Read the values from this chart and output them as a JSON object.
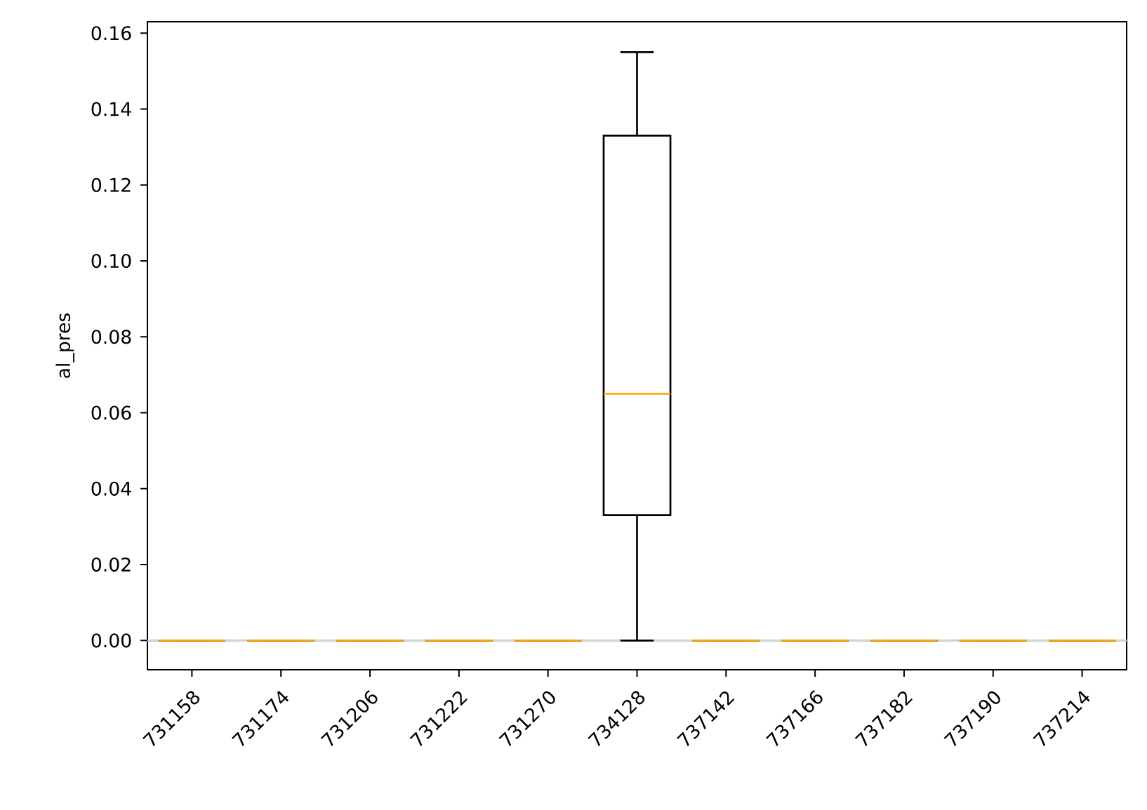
{
  "chart_data": {
    "type": "box",
    "ylabel": "al_pres",
    "categories": [
      "731158",
      "731174",
      "731206",
      "731222",
      "731270",
      "734128",
      "737142",
      "737166",
      "737182",
      "737190",
      "737214"
    ],
    "boxes": [
      {
        "low": 0,
        "q1": 0,
        "median": 0,
        "q3": 0,
        "high": 0
      },
      {
        "low": 0,
        "q1": 0,
        "median": 0,
        "q3": 0,
        "high": 0
      },
      {
        "low": 0,
        "q1": 0,
        "median": 0,
        "q3": 0,
        "high": 0
      },
      {
        "low": 0,
        "q1": 0,
        "median": 0,
        "q3": 0,
        "high": 0
      },
      {
        "low": 0,
        "q1": 0,
        "median": 0,
        "q3": 0,
        "high": 0
      },
      {
        "low": 0,
        "q1": 0.033,
        "median": 0.065,
        "q3": 0.133,
        "high": 0.155
      },
      {
        "low": 0,
        "q1": 0,
        "median": 0,
        "q3": 0,
        "high": 0
      },
      {
        "low": 0,
        "q1": 0,
        "median": 0,
        "q3": 0,
        "high": 0
      },
      {
        "low": 0,
        "q1": 0,
        "median": 0,
        "q3": 0,
        "high": 0
      },
      {
        "low": 0,
        "q1": 0,
        "median": 0,
        "q3": 0,
        "high": 0
      },
      {
        "low": 0,
        "q1": 0,
        "median": 0,
        "q3": 0,
        "high": 0
      }
    ],
    "color": "#000000",
    "ylim": [
      -0.0077,
      0.163
    ],
    "yticks": [
      {
        "value": 0,
        "label": "0.00"
      },
      {
        "value": 0.02,
        "label": "0.02"
      },
      {
        "value": 0.04,
        "label": "0.04"
      },
      {
        "value": 0.06,
        "label": "0.06"
      },
      {
        "value": 0.08,
        "label": "0.08"
      },
      {
        "value": 0.1,
        "label": "0.10"
      },
      {
        "value": 0.12,
        "label": "0.12"
      },
      {
        "value": 0.14,
        "label": "0.14"
      },
      {
        "value": 0.16,
        "label": "0.16"
      }
    ],
    "ref_lines": [
      {
        "axis": "y",
        "value": 0,
        "color": "#d3d3d3"
      }
    ]
  }
}
